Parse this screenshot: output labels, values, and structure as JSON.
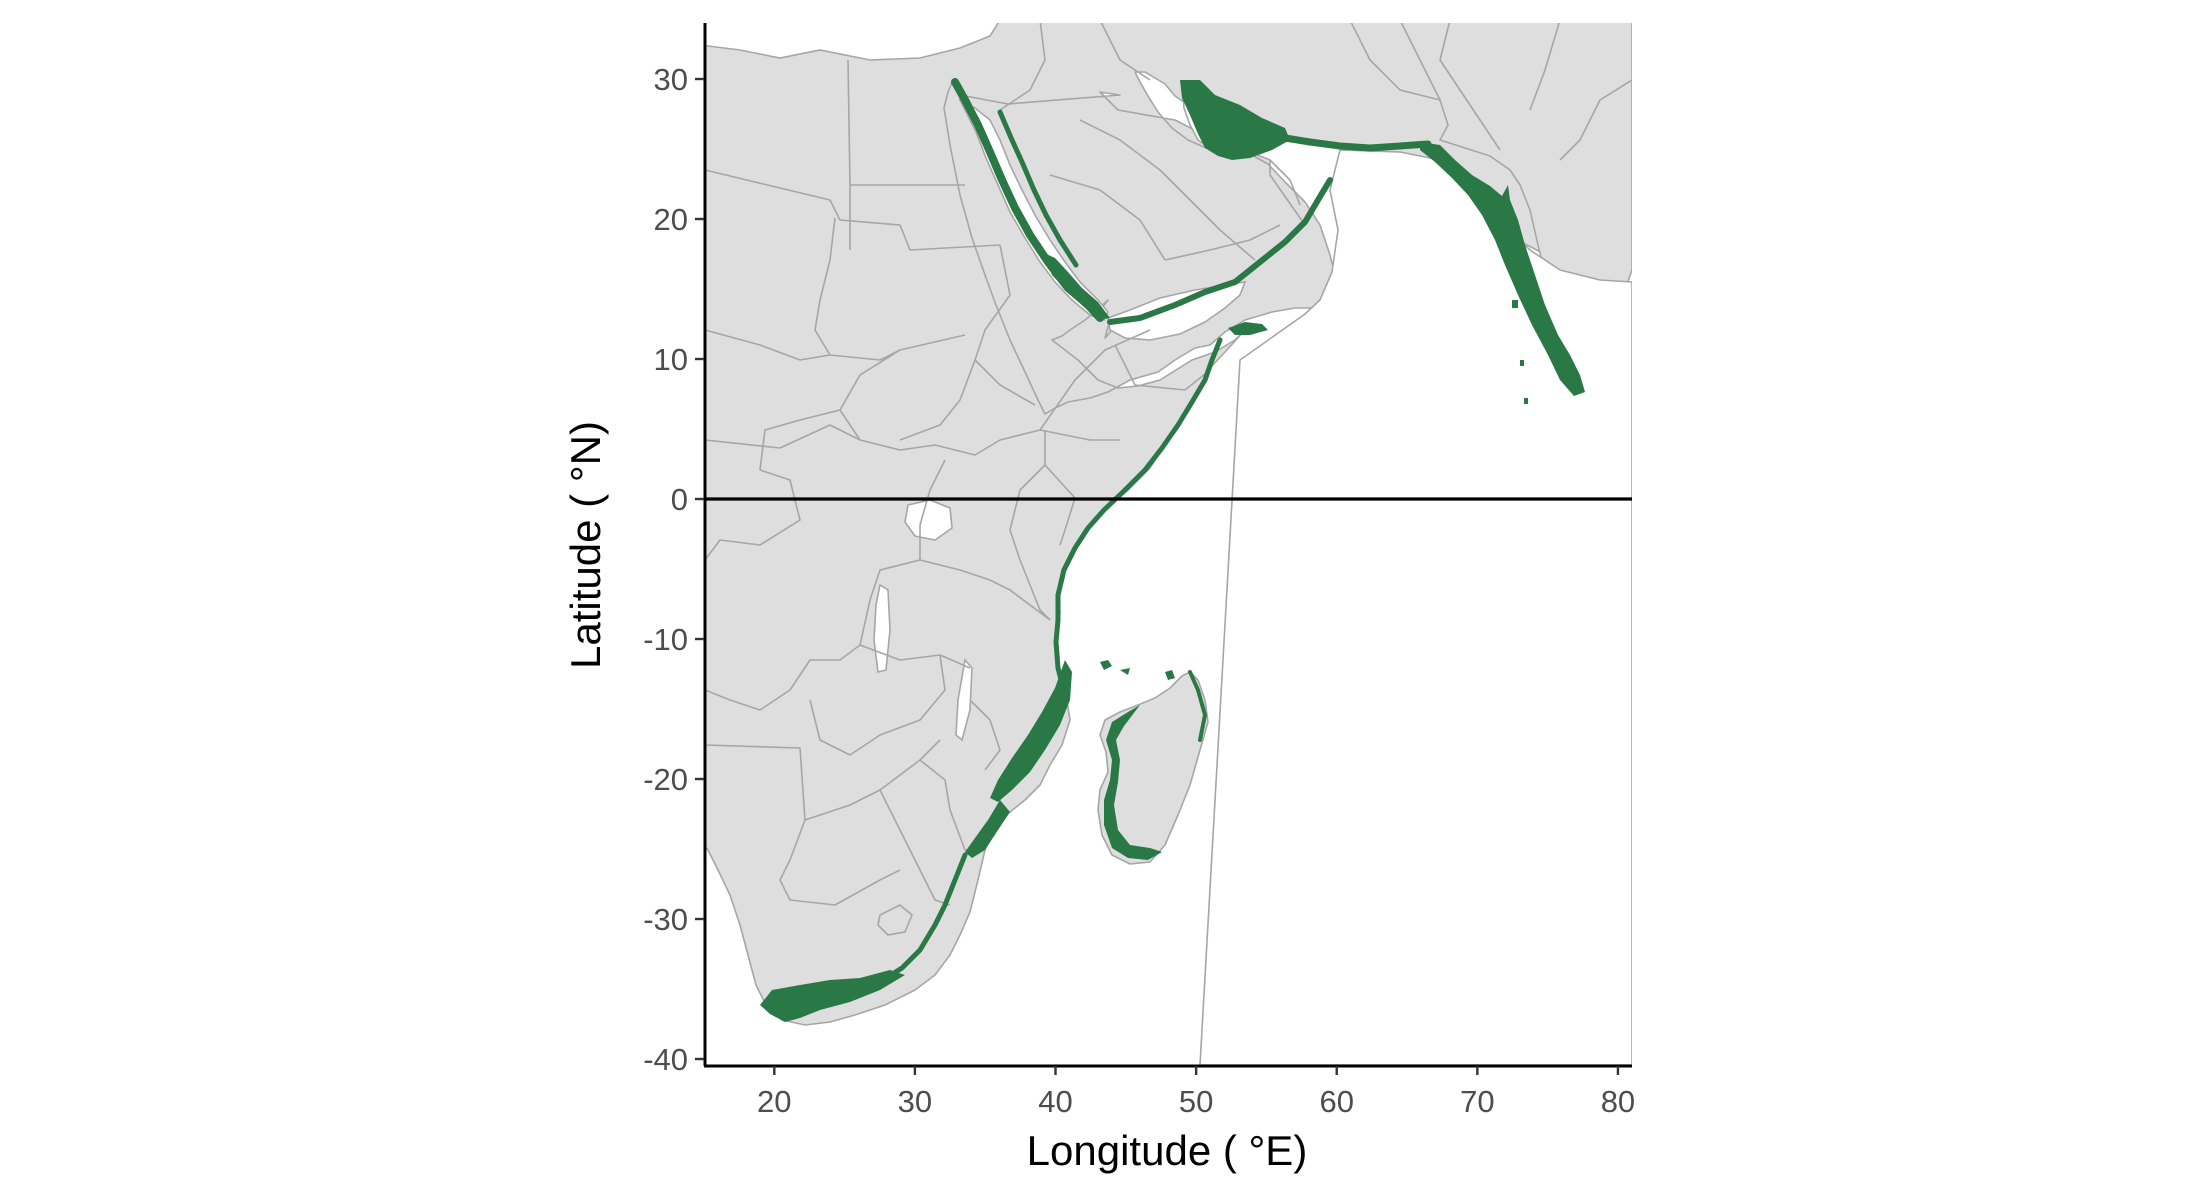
{
  "map": {
    "xlabel": "Longitude ( °E)",
    "ylabel": "Latitude ( °N)",
    "x_range": [
      15,
      81
    ],
    "y_range": [
      -40.5,
      34
    ],
    "x_ticks": [
      {
        "value": 20,
        "label": "20"
      },
      {
        "value": 30,
        "label": "30"
      },
      {
        "value": 40,
        "label": "40"
      },
      {
        "value": 50,
        "label": "50"
      },
      {
        "value": 60,
        "label": "60"
      },
      {
        "value": 70,
        "label": "70"
      },
      {
        "value": 80,
        "label": "80"
      }
    ],
    "y_ticks": [
      {
        "value": 30,
        "label": "30"
      },
      {
        "value": 20,
        "label": "20"
      },
      {
        "value": 10,
        "label": "10"
      },
      {
        "value": 0,
        "label": "0"
      },
      {
        "value": -10,
        "label": "-10"
      },
      {
        "value": -20,
        "label": "-20"
      },
      {
        "value": -30,
        "label": "-30"
      },
      {
        "value": -40,
        "label": "-40"
      }
    ],
    "reference_line_latitude": 0,
    "colors": {
      "land": "#dedede",
      "borders": "#a6a6a6",
      "habitat": "#2a7845",
      "ocean": "#ffffff"
    }
  }
}
